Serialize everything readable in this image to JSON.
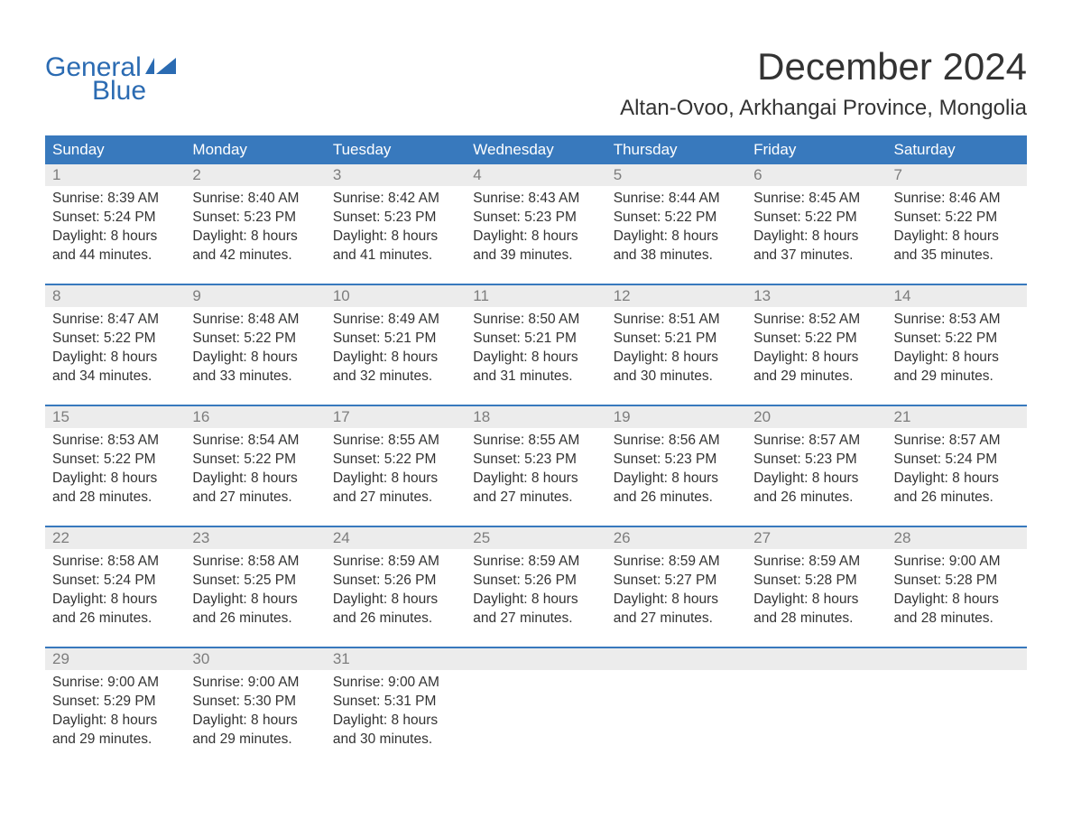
{
  "logo": {
    "text_top": "General",
    "text_bottom": "Blue",
    "color": "#2b6bb2",
    "fontsize": 30
  },
  "header": {
    "month_title": "December 2024",
    "location": "Altan-Ovoo, Arkhangai Province, Mongolia",
    "title_fontsize": 42,
    "title_color": "#333333",
    "location_fontsize": 24
  },
  "calendar": {
    "type": "table",
    "header_bg": "#3879bd",
    "header_text_color": "#ffffff",
    "daynum_bg": "#ececec",
    "daynum_color": "#7d7d7d",
    "content_bg": "#ffffff",
    "content_text_color": "#333333",
    "week_divider_color": "#3879bd",
    "body_fontsize": 15.5,
    "header_fontsize": 17,
    "weekdays": [
      "Sunday",
      "Monday",
      "Tuesday",
      "Wednesday",
      "Thursday",
      "Friday",
      "Saturday"
    ],
    "weeks": [
      {
        "days": [
          {
            "num": "1",
            "sunrise": "Sunrise: 8:39 AM",
            "sunset": "Sunset: 5:24 PM",
            "daylight": "Daylight: 8 hours and 44 minutes."
          },
          {
            "num": "2",
            "sunrise": "Sunrise: 8:40 AM",
            "sunset": "Sunset: 5:23 PM",
            "daylight": "Daylight: 8 hours and 42 minutes."
          },
          {
            "num": "3",
            "sunrise": "Sunrise: 8:42 AM",
            "sunset": "Sunset: 5:23 PM",
            "daylight": "Daylight: 8 hours and 41 minutes."
          },
          {
            "num": "4",
            "sunrise": "Sunrise: 8:43 AM",
            "sunset": "Sunset: 5:23 PM",
            "daylight": "Daylight: 8 hours and 39 minutes."
          },
          {
            "num": "5",
            "sunrise": "Sunrise: 8:44 AM",
            "sunset": "Sunset: 5:22 PM",
            "daylight": "Daylight: 8 hours and 38 minutes."
          },
          {
            "num": "6",
            "sunrise": "Sunrise: 8:45 AM",
            "sunset": "Sunset: 5:22 PM",
            "daylight": "Daylight: 8 hours and 37 minutes."
          },
          {
            "num": "7",
            "sunrise": "Sunrise: 8:46 AM",
            "sunset": "Sunset: 5:22 PM",
            "daylight": "Daylight: 8 hours and 35 minutes."
          }
        ]
      },
      {
        "days": [
          {
            "num": "8",
            "sunrise": "Sunrise: 8:47 AM",
            "sunset": "Sunset: 5:22 PM",
            "daylight": "Daylight: 8 hours and 34 minutes."
          },
          {
            "num": "9",
            "sunrise": "Sunrise: 8:48 AM",
            "sunset": "Sunset: 5:22 PM",
            "daylight": "Daylight: 8 hours and 33 minutes."
          },
          {
            "num": "10",
            "sunrise": "Sunrise: 8:49 AM",
            "sunset": "Sunset: 5:21 PM",
            "daylight": "Daylight: 8 hours and 32 minutes."
          },
          {
            "num": "11",
            "sunrise": "Sunrise: 8:50 AM",
            "sunset": "Sunset: 5:21 PM",
            "daylight": "Daylight: 8 hours and 31 minutes."
          },
          {
            "num": "12",
            "sunrise": "Sunrise: 8:51 AM",
            "sunset": "Sunset: 5:21 PM",
            "daylight": "Daylight: 8 hours and 30 minutes."
          },
          {
            "num": "13",
            "sunrise": "Sunrise: 8:52 AM",
            "sunset": "Sunset: 5:22 PM",
            "daylight": "Daylight: 8 hours and 29 minutes."
          },
          {
            "num": "14",
            "sunrise": "Sunrise: 8:53 AM",
            "sunset": "Sunset: 5:22 PM",
            "daylight": "Daylight: 8 hours and 29 minutes."
          }
        ]
      },
      {
        "days": [
          {
            "num": "15",
            "sunrise": "Sunrise: 8:53 AM",
            "sunset": "Sunset: 5:22 PM",
            "daylight": "Daylight: 8 hours and 28 minutes."
          },
          {
            "num": "16",
            "sunrise": "Sunrise: 8:54 AM",
            "sunset": "Sunset: 5:22 PM",
            "daylight": "Daylight: 8 hours and 27 minutes."
          },
          {
            "num": "17",
            "sunrise": "Sunrise: 8:55 AM",
            "sunset": "Sunset: 5:22 PM",
            "daylight": "Daylight: 8 hours and 27 minutes."
          },
          {
            "num": "18",
            "sunrise": "Sunrise: 8:55 AM",
            "sunset": "Sunset: 5:23 PM",
            "daylight": "Daylight: 8 hours and 27 minutes."
          },
          {
            "num": "19",
            "sunrise": "Sunrise: 8:56 AM",
            "sunset": "Sunset: 5:23 PM",
            "daylight": "Daylight: 8 hours and 26 minutes."
          },
          {
            "num": "20",
            "sunrise": "Sunrise: 8:57 AM",
            "sunset": "Sunset: 5:23 PM",
            "daylight": "Daylight: 8 hours and 26 minutes."
          },
          {
            "num": "21",
            "sunrise": "Sunrise: 8:57 AM",
            "sunset": "Sunset: 5:24 PM",
            "daylight": "Daylight: 8 hours and 26 minutes."
          }
        ]
      },
      {
        "days": [
          {
            "num": "22",
            "sunrise": "Sunrise: 8:58 AM",
            "sunset": "Sunset: 5:24 PM",
            "daylight": "Daylight: 8 hours and 26 minutes."
          },
          {
            "num": "23",
            "sunrise": "Sunrise: 8:58 AM",
            "sunset": "Sunset: 5:25 PM",
            "daylight": "Daylight: 8 hours and 26 minutes."
          },
          {
            "num": "24",
            "sunrise": "Sunrise: 8:59 AM",
            "sunset": "Sunset: 5:26 PM",
            "daylight": "Daylight: 8 hours and 26 minutes."
          },
          {
            "num": "25",
            "sunrise": "Sunrise: 8:59 AM",
            "sunset": "Sunset: 5:26 PM",
            "daylight": "Daylight: 8 hours and 27 minutes."
          },
          {
            "num": "26",
            "sunrise": "Sunrise: 8:59 AM",
            "sunset": "Sunset: 5:27 PM",
            "daylight": "Daylight: 8 hours and 27 minutes."
          },
          {
            "num": "27",
            "sunrise": "Sunrise: 8:59 AM",
            "sunset": "Sunset: 5:28 PM",
            "daylight": "Daylight: 8 hours and 28 minutes."
          },
          {
            "num": "28",
            "sunrise": "Sunrise: 9:00 AM",
            "sunset": "Sunset: 5:28 PM",
            "daylight": "Daylight: 8 hours and 28 minutes."
          }
        ]
      },
      {
        "days": [
          {
            "num": "29",
            "sunrise": "Sunrise: 9:00 AM",
            "sunset": "Sunset: 5:29 PM",
            "daylight": "Daylight: 8 hours and 29 minutes."
          },
          {
            "num": "30",
            "sunrise": "Sunrise: 9:00 AM",
            "sunset": "Sunset: 5:30 PM",
            "daylight": "Daylight: 8 hours and 29 minutes."
          },
          {
            "num": "31",
            "sunrise": "Sunrise: 9:00 AM",
            "sunset": "Sunset: 5:31 PM",
            "daylight": "Daylight: 8 hours and 30 minutes."
          },
          {
            "num": "",
            "sunrise": "",
            "sunset": "",
            "daylight": ""
          },
          {
            "num": "",
            "sunrise": "",
            "sunset": "",
            "daylight": ""
          },
          {
            "num": "",
            "sunrise": "",
            "sunset": "",
            "daylight": ""
          },
          {
            "num": "",
            "sunrise": "",
            "sunset": "",
            "daylight": ""
          }
        ]
      }
    ]
  }
}
